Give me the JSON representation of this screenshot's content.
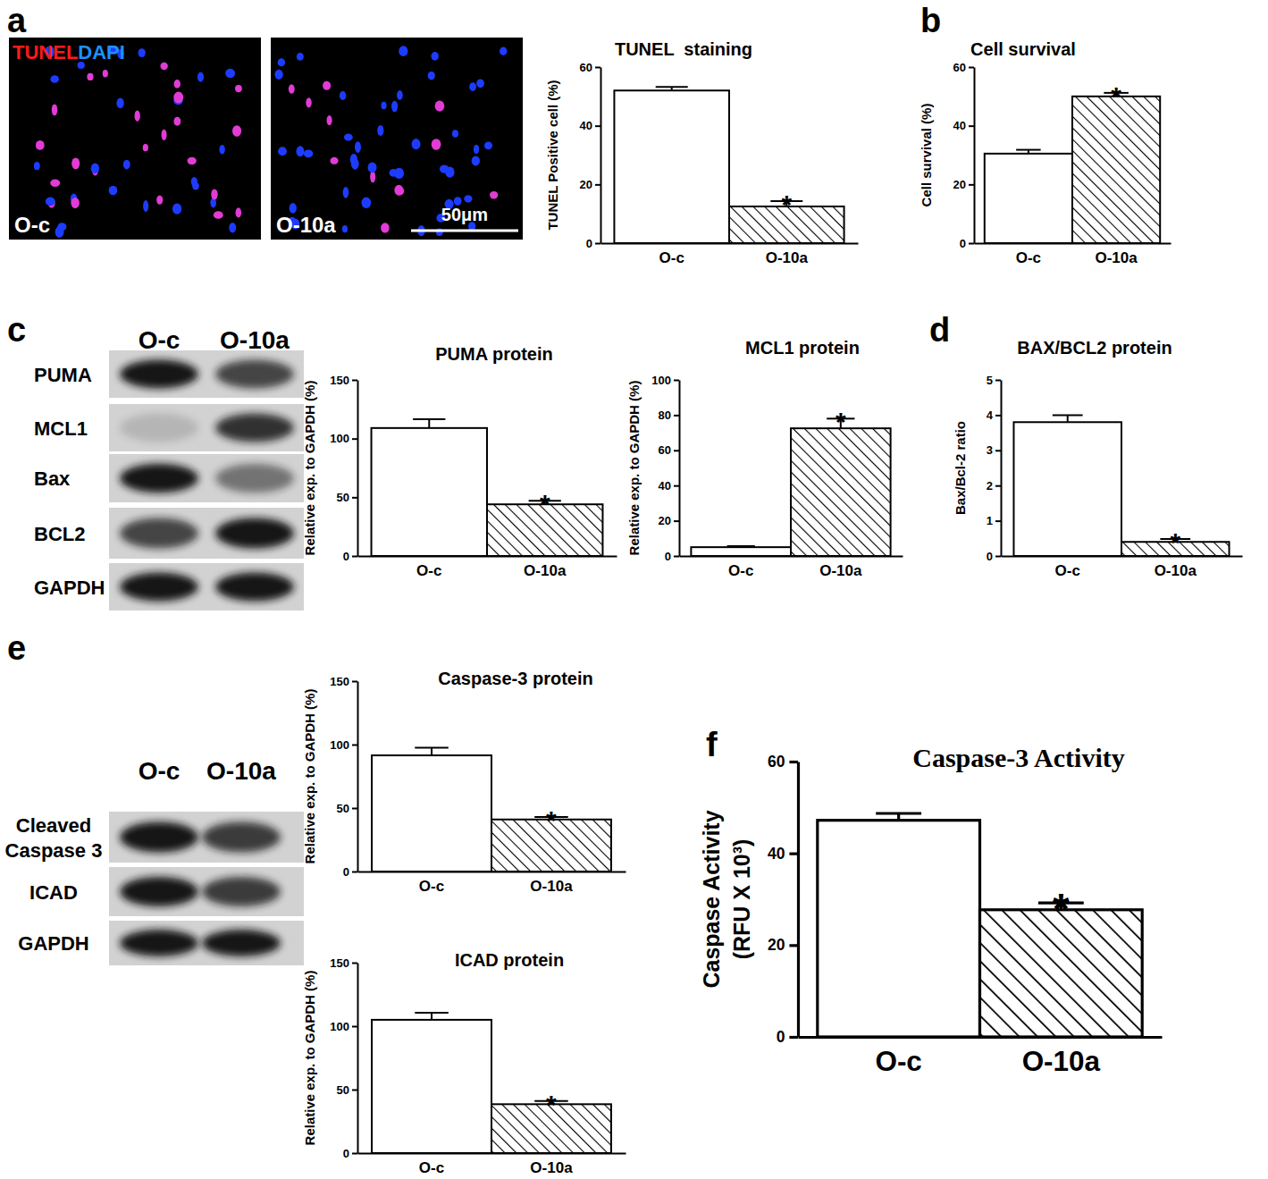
{
  "panels": [
    "a",
    "b",
    "c",
    "d",
    "e",
    "f"
  ],
  "micrographs": {
    "stains": [
      {
        "name": "TUNEL",
        "color": "#ff1a1a"
      },
      {
        "name": "DAPI",
        "color": "#1e90ff"
      }
    ],
    "images": [
      "O-c",
      "O-10a"
    ],
    "scale_bar": "50μm"
  },
  "blots": [
    {
      "lanes": [
        "O-c",
        "O-10a"
      ],
      "rows": [
        [
          "PUMA"
        ],
        [
          "MCL1"
        ],
        [
          "Bax"
        ],
        [
          "BCL2"
        ],
        [
          "GAPDH"
        ]
      ]
    },
    {
      "lanes": [
        "O-c",
        "O-10a"
      ],
      "rows": [
        [
          "Cleaved",
          "Caspase 3"
        ],
        [
          "ICAD"
        ],
        [
          "GAPDH"
        ]
      ]
    }
  ],
  "chart_data": [
    {
      "type": "bar",
      "title": "TUNEL  staining",
      "ylabel": "TUNEL Positive cell (%)",
      "categories": [
        "O-c",
        "O-10a"
      ],
      "values": [
        52,
        12.5
      ],
      "errors": [
        1.2,
        1.8
      ],
      "color": "#000000",
      "ylim": [
        0,
        60
      ],
      "yticks": [
        0,
        20,
        40,
        60
      ],
      "annotations": [
        {
          "text": "*",
          "x": "O-10a"
        }
      ]
    },
    {
      "type": "bar",
      "title": "Cell survival",
      "ylabel": "Cell survival (%)",
      "categories": [
        "O-c",
        "O-10a"
      ],
      "values": [
        30.5,
        50
      ],
      "errors": [
        1.3,
        1.2
      ],
      "color": "#000000",
      "ylim": [
        0,
        60
      ],
      "yticks": [
        0,
        20,
        40,
        60
      ],
      "annotations": [
        {
          "text": "*",
          "x": "O-10a"
        }
      ]
    },
    {
      "type": "bar",
      "title": "PUMA protein",
      "ylabel": "Relative exp. to GAPDH (%)",
      "categories": [
        "O-c",
        "O-10a"
      ],
      "values": [
        109,
        44
      ],
      "errors": [
        7.5,
        3
      ],
      "color": "#000000",
      "ylim": [
        0,
        150
      ],
      "yticks": [
        0,
        50,
        100,
        150
      ],
      "annotations": [
        {
          "text": "*",
          "x": "O-10a"
        }
      ]
    },
    {
      "type": "bar",
      "title": "MCL1 protein",
      "ylabel": "Relative exp. to GAPDH (%)",
      "categories": [
        "O-c",
        "O-10a"
      ],
      "values": [
        5,
        72.5
      ],
      "errors": [
        0.6,
        5.5
      ],
      "color": "#000000",
      "ylim": [
        0,
        100
      ],
      "yticks": [
        0,
        20,
        40,
        60,
        80,
        100
      ],
      "annotations": [
        {
          "text": "*",
          "x": "O-10a"
        }
      ]
    },
    {
      "type": "bar",
      "title": "BAX/BCL2 protein",
      "ylabel": "Bax/Bcl-2 ratio",
      "categories": [
        "O-c",
        "O-10a"
      ],
      "values": [
        3.8,
        0.4
      ],
      "errors": [
        0.2,
        0.08
      ],
      "color": "#000000",
      "ylim": [
        0,
        5
      ],
      "yticks": [
        0,
        1,
        2,
        3,
        4,
        5
      ],
      "annotations": [
        {
          "text": "*",
          "x": "O-10a"
        }
      ]
    },
    {
      "type": "bar",
      "title": "Caspase-3 protein",
      "ylabel": "Relative exp. to GAPDH (%)",
      "categories": [
        "O-c",
        "O-10a"
      ],
      "values": [
        91.5,
        41
      ],
      "errors": [
        6,
        2
      ],
      "color": "#000000",
      "ylim": [
        0,
        150
      ],
      "yticks": [
        0,
        50,
        100,
        150
      ],
      "annotations": [
        {
          "text": "*",
          "x": "O-10a"
        }
      ]
    },
    {
      "type": "bar",
      "title": "ICAD protein",
      "ylabel": "Relative exp. to GAPDH (%)",
      "categories": [
        "O-c",
        "O-10a"
      ],
      "values": [
        105,
        38.5
      ],
      "errors": [
        5.5,
        2.5
      ],
      "color": "#000000",
      "ylim": [
        0,
        150
      ],
      "yticks": [
        0,
        50,
        100,
        150
      ],
      "annotations": [
        {
          "text": "*",
          "x": "O-10a"
        }
      ]
    },
    {
      "type": "bar",
      "title": "Caspase-3 Activity",
      "ylabel": [
        "Caspase Activity",
        "(RFU X 10³)"
      ],
      "categories": [
        "O-c",
        "O-10a"
      ],
      "values": [
        47.2,
        27.7
      ],
      "errors": [
        1.5,
        1.5
      ],
      "color": "#000000",
      "ylim": [
        0,
        60
      ],
      "yticks": [
        0,
        20,
        40,
        60
      ],
      "annotations": [
        {
          "text": "*",
          "x": "O-10a"
        }
      ]
    }
  ]
}
